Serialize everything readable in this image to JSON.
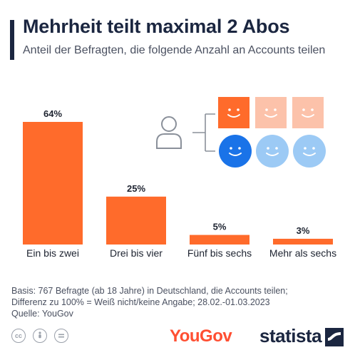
{
  "title": "Mehrheit teilt maximal 2 Abos",
  "subtitle": "Anteil der Befragten, die folgende Anzahl an Accounts teilen",
  "colors": {
    "bar": "#ff6b2b",
    "title_bar": "#1b2640",
    "face_orange": "#ff6b2b",
    "face_orange_light": "#fcc2aa",
    "face_blue": "#1a73e8",
    "face_blue_light": "#9ccaf5"
  },
  "chart_data": {
    "type": "bar",
    "categories": [
      "Ein bis zwei",
      "Drei bis vier",
      "Fünf bis sechs",
      "Mehr als sechs"
    ],
    "values": [
      64,
      25,
      5,
      3
    ],
    "value_labels": [
      "64%",
      "25%",
      "5%",
      "3%"
    ],
    "ylim": [
      0,
      64
    ],
    "grid": false,
    "legend": "none"
  },
  "illustration": {
    "person": "user-icon",
    "top_row": [
      "orange-face",
      "light-orange-face",
      "light-orange-face"
    ],
    "bottom_row": [
      "blue-face",
      "light-blue-face",
      "light-blue-face"
    ]
  },
  "footer": {
    "basis_line1": "Basis: 767 Befragte (ab 18 Jahre) in Deutschland, die Accounts teilen;",
    "basis_line2": "Differenz zu 100% = Weiß nicht/keine Angabe; 28.02.-01.03.2023",
    "source": "Quelle: YouGov",
    "license_icons": [
      "cc-icon",
      "by-icon",
      "nd-icon"
    ],
    "yougov_logo": "YouGov",
    "statista_logo": "statista"
  }
}
